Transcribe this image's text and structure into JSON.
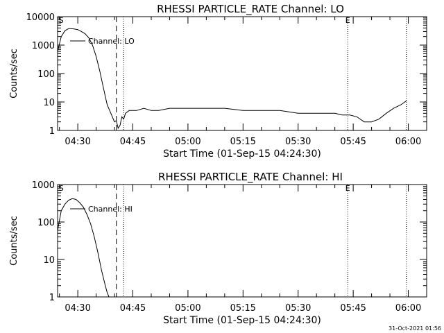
{
  "chart_data": [
    {
      "type": "line",
      "title": "RHESSI PARTICLE_RATE Channel: LO",
      "xlabel": "Start Time (01-Sep-15 04:24:30)",
      "ylabel": "Counts/sec",
      "yscale": "log",
      "ylim": [
        1,
        10000
      ],
      "xlim": [
        "04:24:30",
        "06:05:00"
      ],
      "x_ticks": [
        "04:30",
        "04:45",
        "05:00",
        "05:15",
        "05:30",
        "05:45",
        "06:00"
      ],
      "y_ticks": [
        "1",
        "10",
        "100",
        "1000",
        "10000"
      ],
      "legend": "Channel: LO",
      "legend_position": "top-left",
      "markers": [
        {
          "time": "04:25:30",
          "style": "none",
          "label": "S"
        },
        {
          "time": "04:40:30",
          "style": "dashed",
          "label": ""
        },
        {
          "time": "04:42:30",
          "style": "dotted",
          "label": ""
        },
        {
          "time": "05:43:30",
          "style": "dotted",
          "label": "E"
        },
        {
          "time": "05:59:30",
          "style": "dotted",
          "label": ""
        }
      ],
      "series": [
        {
          "x": [
            "04:24:30",
            "04:25:30",
            "04:26:30",
            "04:27:30",
            "04:28:00",
            "04:29:00",
            "04:30:00",
            "04:31:00",
            "04:32:00",
            "04:33:00",
            "04:34:00",
            "04:35:00",
            "04:36:00",
            "04:37:00",
            "04:38:00",
            "04:39:00",
            "04:40:00",
            "04:40:30",
            "04:41:00",
            "04:41:30",
            "04:42:00",
            "04:42:30",
            "04:43:00",
            "04:44:00",
            "04:46:00",
            "04:48:00",
            "04:50:00",
            "04:52:00",
            "04:55:00",
            "05:00:00",
            "05:05:00",
            "05:10:00",
            "05:15:00",
            "05:20:00",
            "05:25:00",
            "05:30:00",
            "05:33:00",
            "05:36:00",
            "05:38:00",
            "05:40:00",
            "05:42:00",
            "05:44:00",
            "05:46:00",
            "05:48:00",
            "05:50:00",
            "05:52:00",
            "05:54:00",
            "05:56:00",
            "05:58:00",
            "05:59:30"
          ],
          "y": [
            600,
            2000,
            3200,
            3800,
            3800,
            3700,
            3500,
            3000,
            2500,
            1800,
            1000,
            400,
            120,
            30,
            8,
            4,
            2,
            2.2,
            1.2,
            1.5,
            3,
            2.5,
            4,
            5,
            5,
            6,
            5,
            5,
            6,
            6,
            6,
            6,
            5,
            5,
            5,
            4,
            4,
            4,
            4,
            4,
            3.5,
            3.5,
            3,
            2,
            2,
            2.5,
            4,
            6,
            8,
            11
          ]
        }
      ]
    },
    {
      "type": "line",
      "title": "RHESSI PARTICLE_RATE Channel: HI",
      "xlabel": "Start Time (01-Sep-15 04:24:30)",
      "ylabel": "Counts/sec",
      "yscale": "log",
      "ylim": [
        1,
        1000
      ],
      "xlim": [
        "04:24:30",
        "06:05:00"
      ],
      "x_ticks": [
        "04:30",
        "04:45",
        "05:00",
        "05:15",
        "05:30",
        "05:45",
        "06:00"
      ],
      "y_ticks": [
        "1",
        "10",
        "100",
        "1000"
      ],
      "legend": "Channel: HI",
      "legend_position": "top-left",
      "markers": [
        {
          "time": "04:25:30",
          "style": "none",
          "label": "S"
        },
        {
          "time": "04:40:30",
          "style": "dashed",
          "label": ""
        },
        {
          "time": "04:42:30",
          "style": "dotted",
          "label": ""
        },
        {
          "time": "05:43:30",
          "style": "dotted",
          "label": "E"
        },
        {
          "time": "05:59:30",
          "style": "dotted",
          "label": ""
        }
      ],
      "series": [
        {
          "x": [
            "04:24:30",
            "04:25:30",
            "04:26:30",
            "04:27:30",
            "04:28:30",
            "04:29:30",
            "04:30:30",
            "04:31:30",
            "04:32:30",
            "04:33:30",
            "04:34:30",
            "04:35:30",
            "04:36:30",
            "04:37:30",
            "04:38:00",
            "04:38:30"
          ],
          "y": [
            60,
            200,
            300,
            380,
            420,
            400,
            330,
            250,
            160,
            90,
            40,
            15,
            5,
            2,
            1.3,
            1
          ]
        }
      ]
    }
  ],
  "footer": {
    "timestamp": "31-Oct-2021 01:56"
  }
}
